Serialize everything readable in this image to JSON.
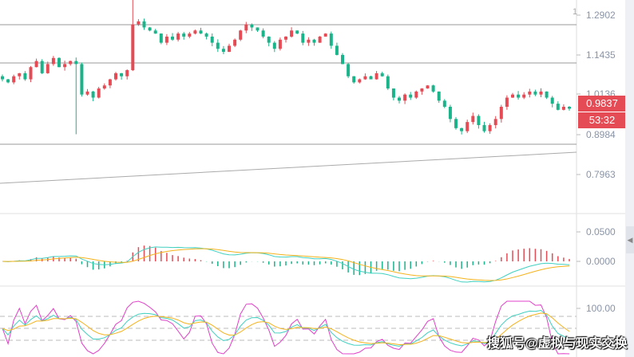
{
  "chart_data": {
    "type": "candlestick",
    "main": {
      "closes": [
        1.08,
        1.07,
        1.09,
        1.1,
        1.08,
        1.12,
        1.14,
        1.1,
        1.13,
        1.15,
        1.12,
        1.13,
        1.14,
        1.13,
        1.03,
        1.04,
        1.02,
        1.05,
        1.06,
        1.08,
        1.1,
        1.09,
        1.11,
        1.26,
        1.27,
        1.25,
        1.24,
        1.23,
        1.2,
        1.22,
        1.21,
        1.23,
        1.22,
        1.23,
        1.24,
        1.23,
        1.22,
        1.2,
        1.18,
        1.17,
        1.19,
        1.21,
        1.24,
        1.26,
        1.25,
        1.24,
        1.22,
        1.2,
        1.18,
        1.21,
        1.22,
        1.24,
        1.23,
        1.2,
        1.21,
        1.2,
        1.22,
        1.23,
        1.19,
        1.16,
        1.13,
        1.09,
        1.07,
        1.08,
        1.09,
        1.08,
        1.1,
        1.09,
        1.05,
        1.02,
        1.01,
        1.03,
        1.02,
        1.04,
        1.05,
        1.06,
        1.04,
        1.01,
        0.99,
        0.95,
        0.92,
        0.91,
        0.94,
        0.96,
        0.93,
        0.91,
        0.93,
        0.95,
        0.99,
        1.02,
        1.03,
        1.02,
        1.03,
        1.04,
        1.03,
        1.04,
        1.02,
        1.0,
        0.98,
        0.99,
        0.9837
      ],
      "price_ticks": [
        "1.2902",
        "1.1435",
        "1.0136",
        "0.8984",
        "0.7963"
      ],
      "horizontal_lines": [
        1.2902,
        1.1435,
        0.9
      ],
      "ylim": [
        0.64,
        1.34
      ],
      "last_price": "0.9837",
      "countdown": "53:32",
      "corner_label": "1"
    },
    "macd": {
      "ticks": [
        "0.0500",
        "0.0000"
      ]
    },
    "kdj": {
      "ticks": [
        "100.00"
      ]
    },
    "colors": {
      "up": "#e54b55",
      "down": "#1bb38a",
      "dif": "#40d0c0",
      "dea": "#f5b21b",
      "j": "#e040c8"
    }
  },
  "watermark": "搜狐号@虚拟与现实交换"
}
